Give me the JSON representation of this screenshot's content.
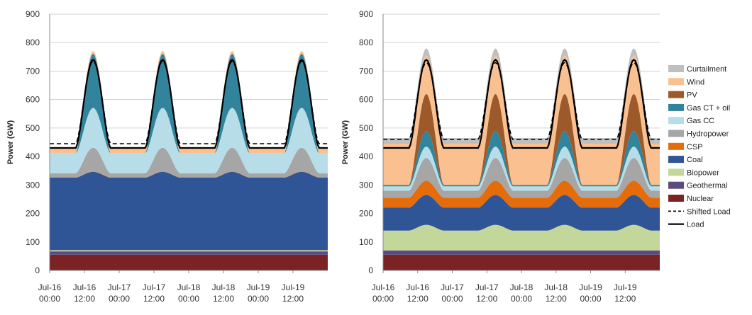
{
  "chart_data": [
    {
      "type": "area",
      "panel": "left",
      "ylabel": "Power (GW)",
      "ylim": [
        0,
        900
      ],
      "yticks": [
        0,
        100,
        200,
        300,
        400,
        500,
        600,
        700,
        800,
        900
      ],
      "xlim": [
        0,
        96
      ],
      "xticks": [
        {
          "pos": 0,
          "line1": "Jul-16",
          "line2": "00:00"
        },
        {
          "pos": 12,
          "line1": "Jul-16",
          "line2": "12:00"
        },
        {
          "pos": 24,
          "line1": "Jul-17",
          "line2": "00:00"
        },
        {
          "pos": 36,
          "line1": "Jul-17",
          "line2": "12:00"
        },
        {
          "pos": 48,
          "line1": "Jul-18",
          "line2": "00:00"
        },
        {
          "pos": 60,
          "line1": "Jul-18",
          "line2": "12:00"
        },
        {
          "pos": 72,
          "line1": "Jul-19",
          "line2": "00:00"
        },
        {
          "pos": 84,
          "line1": "Jul-19",
          "line2": "12:00"
        }
      ],
      "grid": "horizontal",
      "series": [
        {
          "name": "Nuclear",
          "color": "#7b2323",
          "base": 55,
          "amp": 0
        },
        {
          "name": "Geothermal",
          "color": "#5e4a7e",
          "base": 12,
          "amp": 0
        },
        {
          "name": "Biopower",
          "color": "#c4d79b",
          "base": 4,
          "amp": 0
        },
        {
          "name": "Coal",
          "color": "#2f5597",
          "base": 255,
          "amp": 20
        },
        {
          "name": "CSP",
          "color": "#e46c0a",
          "base": 1,
          "amp": 0
        },
        {
          "name": "Hydropower",
          "color": "#a6a6a6",
          "base": 14,
          "amp": 70
        },
        {
          "name": "Gas CC",
          "color": "#b7dee8",
          "base": 70,
          "amp": 70
        },
        {
          "name": "Gas CT + oil",
          "color": "#31849b",
          "base": 0,
          "amp": 190
        },
        {
          "name": "PV",
          "color": "#9c5a2b",
          "base": 0,
          "amp": 0
        },
        {
          "name": "Wind",
          "color": "#fac090",
          "base": 18,
          "amp": -8
        },
        {
          "name": "Curtailment",
          "color": "#bfbfbf",
          "base": 0,
          "amp": 0
        }
      ],
      "lines": [
        {
          "name": "Load",
          "style": "solid",
          "base": 430,
          "amp": 310
        },
        {
          "name": "Shifted Load",
          "style": "dashed",
          "base": 445,
          "amp": 290
        }
      ]
    },
    {
      "type": "area",
      "panel": "right",
      "ylabel": "Power (GW)",
      "ylim": [
        0,
        900
      ],
      "yticks": [
        0,
        100,
        200,
        300,
        400,
        500,
        600,
        700,
        800,
        900
      ],
      "xlim": [
        0,
        96
      ],
      "xticks": [
        {
          "pos": 0,
          "line1": "Jul-16",
          "line2": "00:00"
        },
        {
          "pos": 12,
          "line1": "Jul-16",
          "line2": "12:00"
        },
        {
          "pos": 24,
          "line1": "Jul-17",
          "line2": "00:00"
        },
        {
          "pos": 36,
          "line1": "Jul-17",
          "line2": "12:00"
        },
        {
          "pos": 48,
          "line1": "Jul-18",
          "line2": "00:00"
        },
        {
          "pos": 60,
          "line1": "Jul-18",
          "line2": "12:00"
        },
        {
          "pos": 72,
          "line1": "Jul-19",
          "line2": "00:00"
        },
        {
          "pos": 84,
          "line1": "Jul-19",
          "line2": "12:00"
        }
      ],
      "grid": "horizontal",
      "series": [
        {
          "name": "Nuclear",
          "color": "#7b2323",
          "base": 55,
          "amp": 0
        },
        {
          "name": "Geothermal",
          "color": "#5e4a7e",
          "base": 15,
          "amp": 0
        },
        {
          "name": "Biopower",
          "color": "#c4d79b",
          "base": 70,
          "amp": 20
        },
        {
          "name": "Coal",
          "color": "#2f5597",
          "base": 80,
          "amp": 25
        },
        {
          "name": "CSP",
          "color": "#e46c0a",
          "base": 35,
          "amp": 15
        },
        {
          "name": "Hydropower",
          "color": "#a6a6a6",
          "base": 25,
          "amp": 55
        },
        {
          "name": "Gas CC",
          "color": "#b7dee8",
          "base": 15,
          "amp": 25
        },
        {
          "name": "Gas CT + oil",
          "color": "#31849b",
          "base": 5,
          "amp": 50
        },
        {
          "name": "PV",
          "color": "#9c5a2b",
          "base": 0,
          "amp": 130
        },
        {
          "name": "Wind",
          "color": "#fac090",
          "base": 145,
          "amp": -10
        },
        {
          "name": "Curtailment",
          "color": "#bfbfbf",
          "base": 20,
          "amp": 5
        }
      ],
      "lines": [
        {
          "name": "Load",
          "style": "solid",
          "base": 430,
          "amp": 310
        },
        {
          "name": "Shifted Load",
          "style": "dashed",
          "base": 460,
          "amp": 270
        }
      ]
    }
  ],
  "legend": {
    "placement": "right",
    "entries": [
      {
        "label": "Curtailment",
        "color": "#bfbfbf",
        "kind": "box"
      },
      {
        "label": "Wind",
        "color": "#fac090",
        "kind": "box"
      },
      {
        "label": "PV",
        "color": "#9c5a2b",
        "kind": "box"
      },
      {
        "label": "Gas CT + oil",
        "color": "#31849b",
        "kind": "box"
      },
      {
        "label": "Gas CC",
        "color": "#b7dee8",
        "kind": "box"
      },
      {
        "label": "Hydropower",
        "color": "#a6a6a6",
        "kind": "box"
      },
      {
        "label": "CSP",
        "color": "#e46c0a",
        "kind": "box"
      },
      {
        "label": "Coal",
        "color": "#2f5597",
        "kind": "box"
      },
      {
        "label": "Biopower",
        "color": "#c4d79b",
        "kind": "box"
      },
      {
        "label": "Geothermal",
        "color": "#5e4a7e",
        "kind": "box"
      },
      {
        "label": "Nuclear",
        "color": "#7b2323",
        "kind": "box"
      },
      {
        "label": "Shifted Load",
        "color": "#000000",
        "kind": "dashed"
      },
      {
        "label": "Load",
        "color": "#000000",
        "kind": "solid"
      }
    ]
  }
}
